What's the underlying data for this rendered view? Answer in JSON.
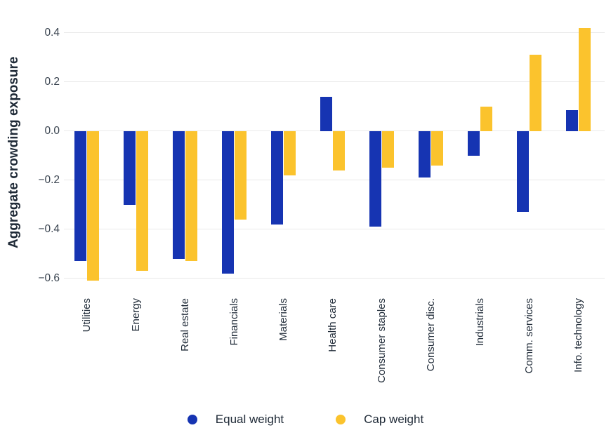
{
  "chart_data": {
    "type": "bar",
    "title": "",
    "xlabel": "",
    "ylabel": "Aggregate crowding exposure",
    "categories": [
      "Utilities",
      "Energy",
      "Real estate",
      "Financials",
      "Materials",
      "Health care",
      "Consumer staples",
      "Consumer disc.",
      "Industrials",
      "Comm. services",
      "Info. technology"
    ],
    "series": [
      {
        "name": "Equal weight",
        "color": "#1634b2",
        "values": [
          -0.53,
          -0.3,
          -0.52,
          -0.58,
          -0.38,
          0.14,
          -0.39,
          -0.19,
          -0.1,
          -0.33,
          0.085
        ]
      },
      {
        "name": "Cap weight",
        "color": "#fbc32d",
        "values": [
          -0.61,
          -0.57,
          -0.53,
          -0.36,
          -0.18,
          -0.16,
          -0.15,
          -0.14,
          0.1,
          0.31,
          0.42
        ]
      }
    ],
    "yticks": [
      0.4,
      0.2,
      0.0,
      -0.2,
      -0.4,
      -0.6
    ],
    "ytick_labels": [
      "0.4",
      "0.2",
      "0.0",
      "−0.2",
      "−0.4",
      "−0.6"
    ],
    "ylim": [
      -0.66,
      0.47
    ],
    "grid": true,
    "legend_position": "bottom"
  }
}
